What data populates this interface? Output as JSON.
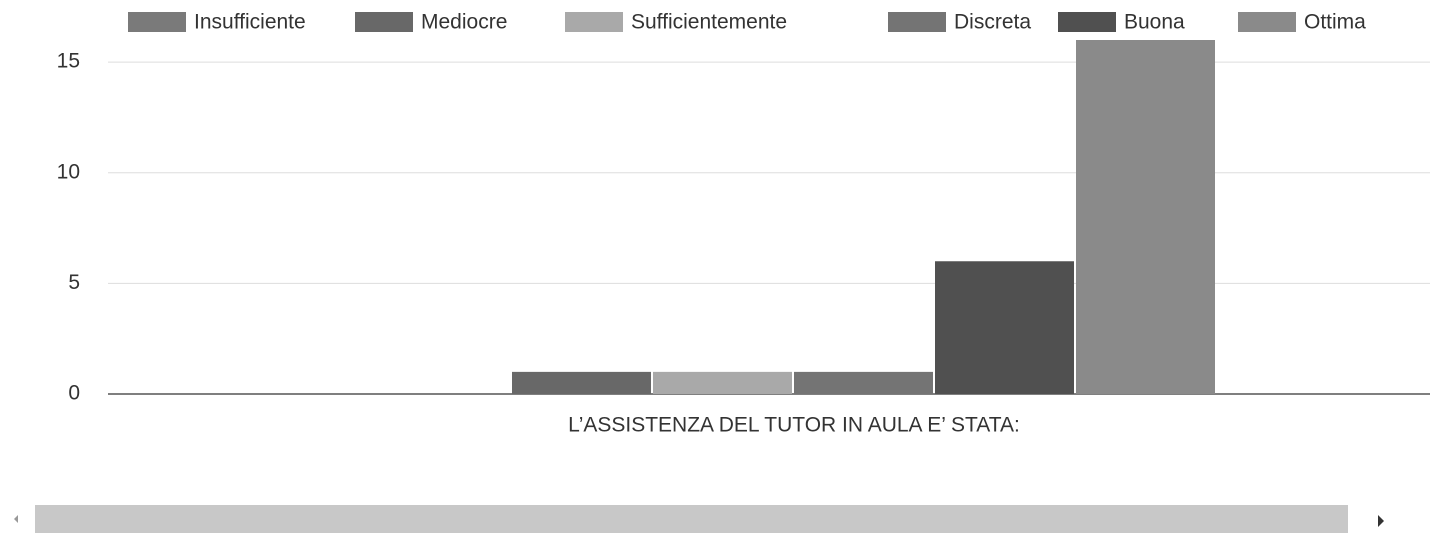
{
  "chart_data": {
    "type": "bar",
    "categories": [
      "L’ASSISTENZA DEL TUTOR IN AULA E’ STATA:"
    ],
    "series": [
      {
        "name": "Insufficiente",
        "color": "#7a7a7a",
        "values": [
          0
        ]
      },
      {
        "name": "Mediocre",
        "color": "#686868",
        "values": [
          1
        ]
      },
      {
        "name": "Sufficientemente",
        "color": "#a9a9a9",
        "values": [
          1
        ]
      },
      {
        "name": "Discreta",
        "color": "#747474",
        "values": [
          1
        ]
      },
      {
        "name": "Buona",
        "color": "#505050",
        "values": [
          6
        ]
      },
      {
        "name": "Ottima",
        "color": "#8a8a8a",
        "values": [
          16
        ]
      }
    ],
    "ylim": [
      0,
      16
    ],
    "yticks": [
      0,
      5,
      10,
      15
    ],
    "grid": true,
    "legend": "top"
  }
}
